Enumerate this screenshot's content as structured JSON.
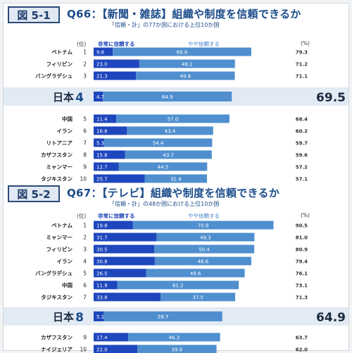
{
  "colors": {
    "dark": "#1e46bd",
    "light": "#4f8fcf",
    "background_bar": "#eef1f4",
    "japan_band": "#e2ebf4",
    "title": "#1c4c8a"
  },
  "chart_data": [
    {
      "type": "bar",
      "stacked": true,
      "orientation": "horizontal",
      "figure_label": "図 5-1",
      "title": "Q66：【新聞・雑誌】組織や制度を信頼できるか",
      "subtitle": "「信頼・計」の77か国における上位10か国",
      "rank_header": "(位)",
      "pct_header": "(%)",
      "series_names": [
        "非常に信頼する",
        "やや信頼する"
      ],
      "rows": [
        {
          "rank": "1",
          "country": "ベトナム",
          "values": [
            9.6,
            69.8
          ],
          "total": "79.3"
        },
        {
          "rank": "2",
          "country": "フィリピン",
          "values": [
            23.0,
            48.2
          ],
          "total": "71.2"
        },
        {
          "rank": "3",
          "country": "バングラデシュ",
          "values": [
            21.3,
            49.8
          ],
          "total": "71.1"
        },
        {
          "rank": "4",
          "country": "日本",
          "values": [
            4.7,
            64.9
          ],
          "total": "69.5",
          "highlight": true
        },
        {
          "rank": "5",
          "country": "中国",
          "values": [
            11.4,
            57.0
          ],
          "total": "68.4"
        },
        {
          "rank": "6",
          "country": "イラン",
          "values": [
            16.8,
            43.4
          ],
          "total": "60.2"
        },
        {
          "rank": "7",
          "country": "リトアニア",
          "values": [
            5.3,
            54.4
          ],
          "total": "59.7"
        },
        {
          "rank": "8",
          "country": "カザフスタン",
          "values": [
            15.8,
            43.7
          ],
          "total": "59.6"
        },
        {
          "rank": "9",
          "country": "ミャンマー",
          "values": [
            12.7,
            44.5
          ],
          "total": "57.2"
        },
        {
          "rank": "10",
          "country": "タジキスタン",
          "values": [
            25.7,
            31.4
          ],
          "total": "57.1"
        }
      ]
    },
    {
      "type": "bar",
      "stacked": true,
      "orientation": "horizontal",
      "figure_label": "図 5-2",
      "title": "Q67：【テレビ】組織や制度を信頼できるか",
      "subtitle": "「信頼・計」の48か国における上位10か国",
      "rank_header": "(位)",
      "pct_header": "(%)",
      "series_names": [
        "非常に信頼する",
        "やや信頼する"
      ],
      "rows": [
        {
          "rank": "1",
          "country": "ベトナム",
          "values": [
            19.8,
            70.8
          ],
          "total": "90.5"
        },
        {
          "rank": "2",
          "country": "ミャンマー",
          "values": [
            31.7,
            49.3
          ],
          "total": "81.0"
        },
        {
          "rank": "3",
          "country": "フィリピン",
          "values": [
            30.5,
            50.4
          ],
          "total": "80.9"
        },
        {
          "rank": "4",
          "country": "イラン",
          "values": [
            30.8,
            48.6
          ],
          "total": "79.4"
        },
        {
          "rank": "5",
          "country": "バングラデシュ",
          "values": [
            26.5,
            49.6
          ],
          "total": "76.1"
        },
        {
          "rank": "6",
          "country": "中国",
          "values": [
            11.9,
            61.2
          ],
          "total": "73.1"
        },
        {
          "rank": "7",
          "country": "タジキスタン",
          "values": [
            33.8,
            37.5
          ],
          "total": "71.3"
        },
        {
          "rank": "8",
          "country": "日本",
          "values": [
            5.1,
            59.7
          ],
          "total": "64.9",
          "highlight": true
        },
        {
          "rank": "9",
          "country": "カザフスタン",
          "values": [
            17.4,
            46.3
          ],
          "total": "63.7"
        },
        {
          "rank": "10",
          "country": "ナイジェリア",
          "values": [
            22.0,
            39.9
          ],
          "total": "62.0"
        }
      ]
    }
  ]
}
